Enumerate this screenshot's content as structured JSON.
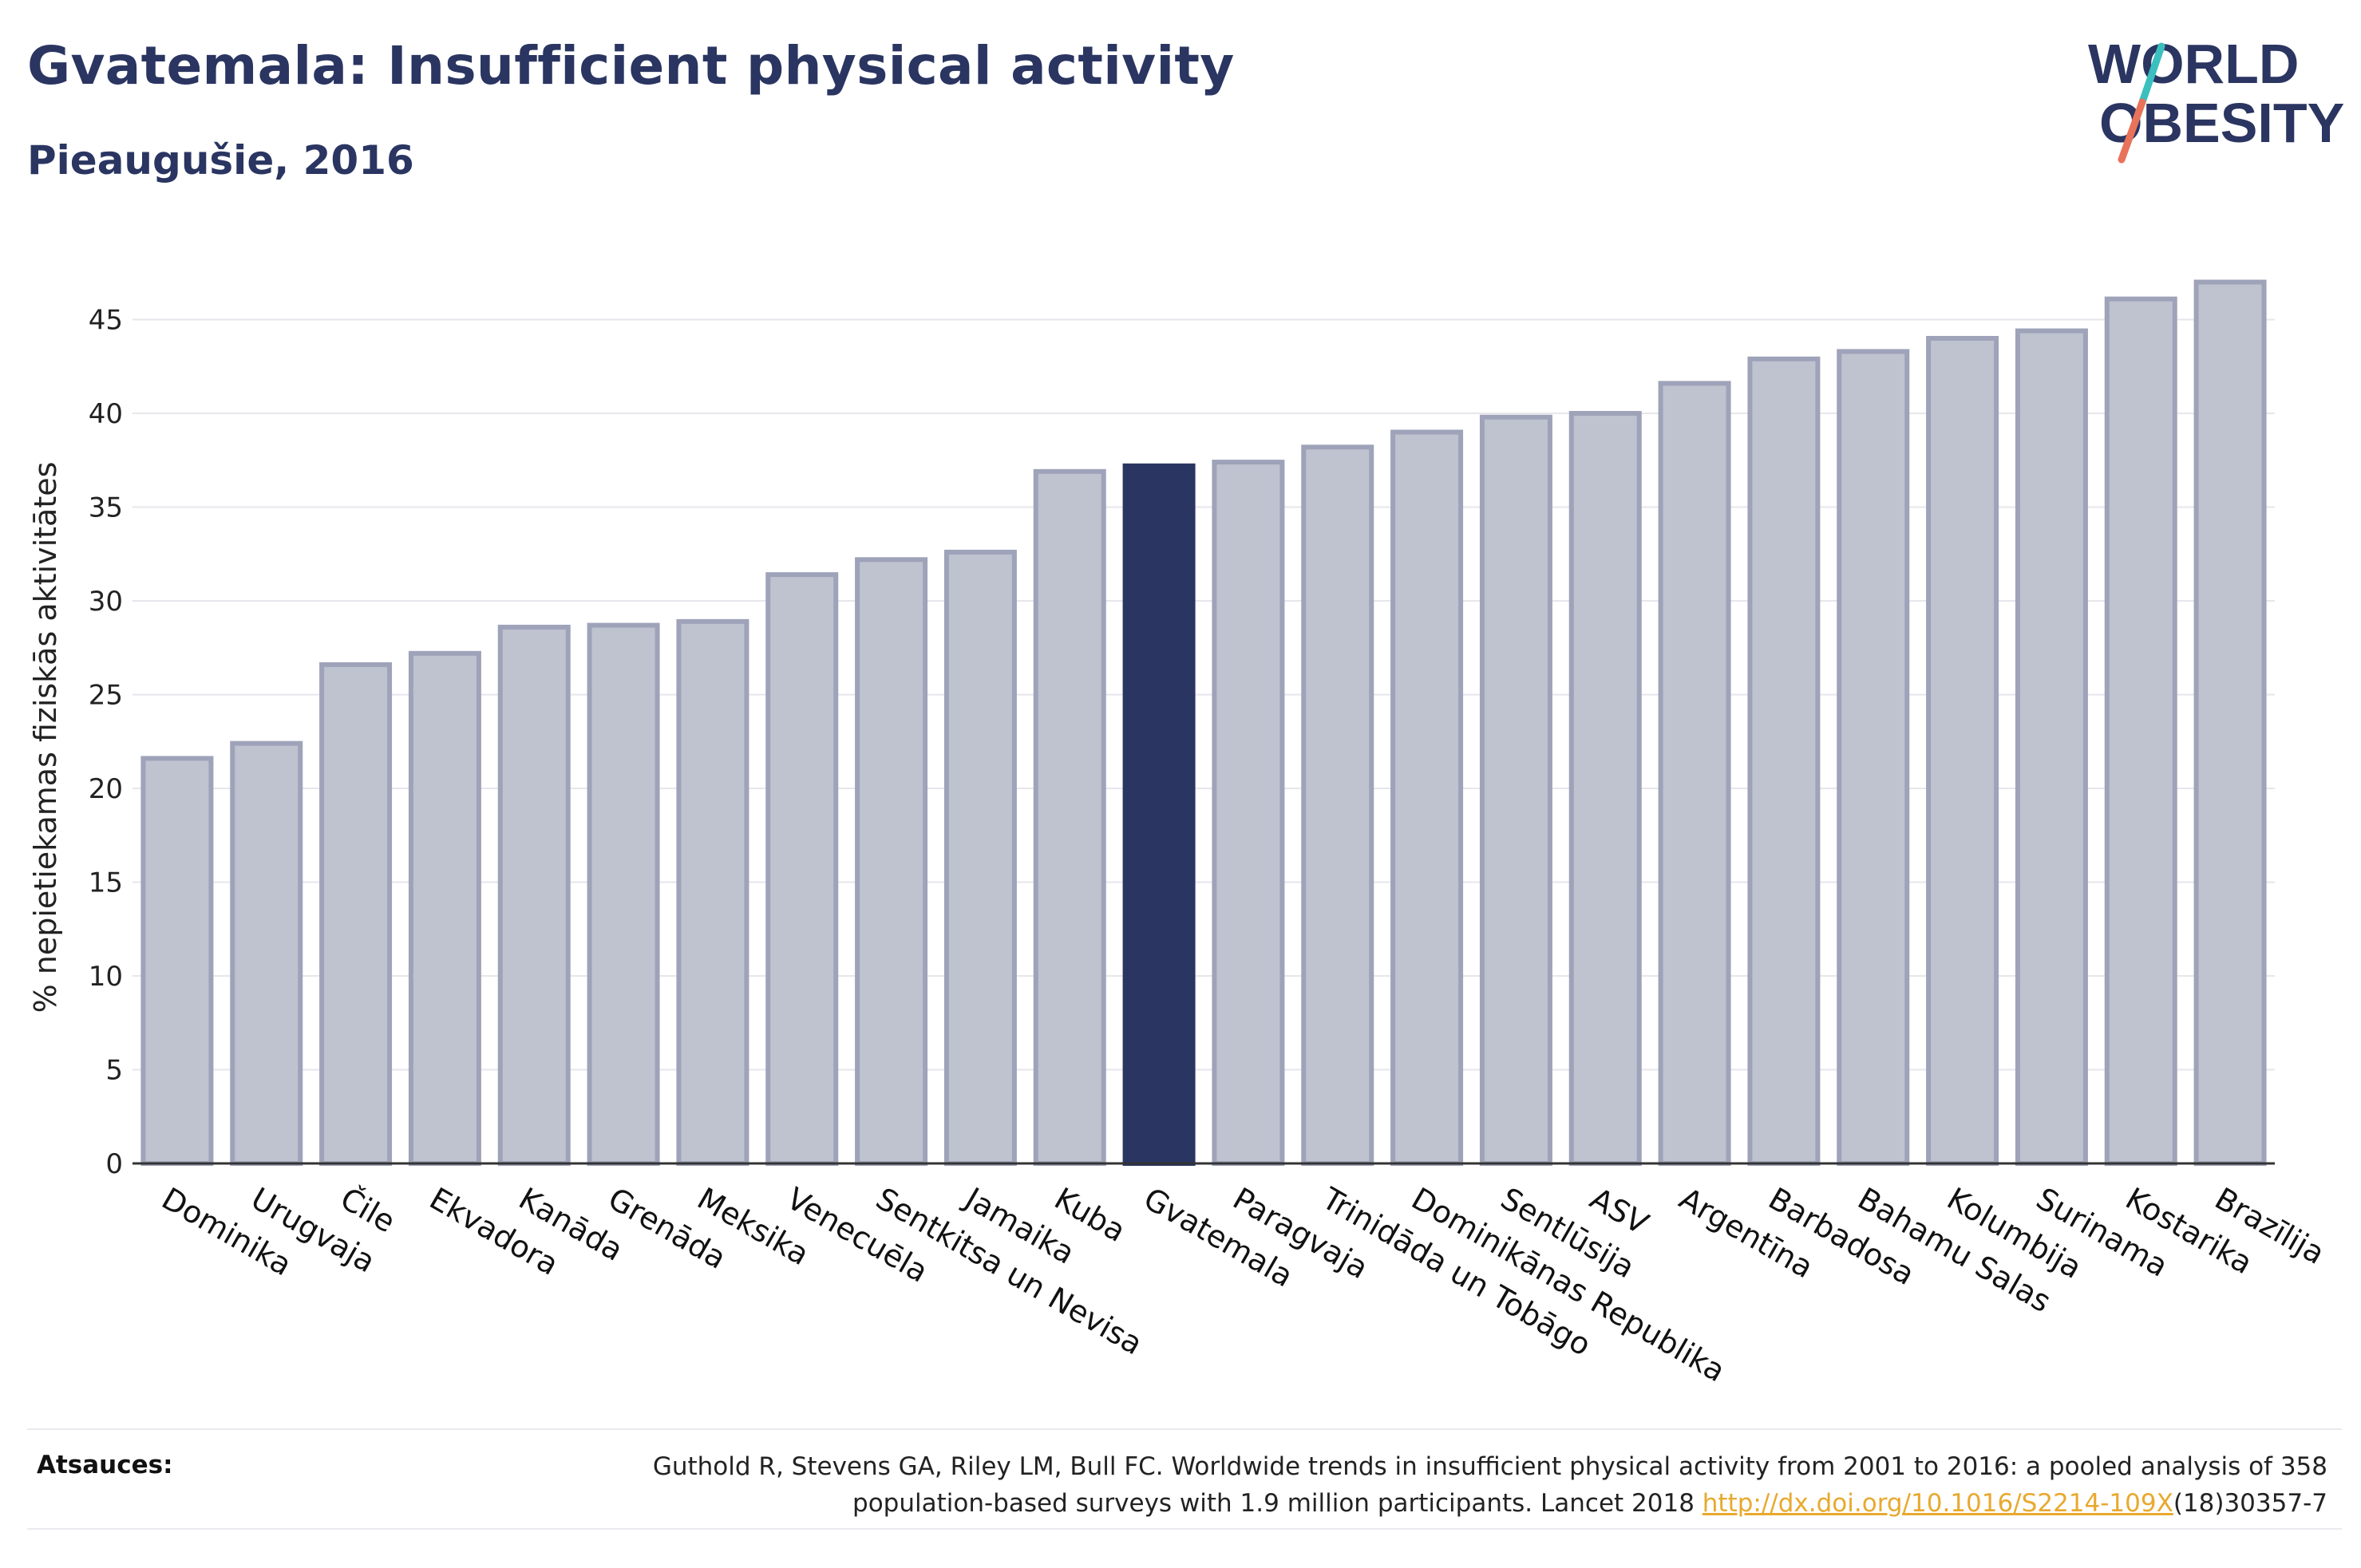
{
  "header": {
    "title": "Gvatemala: Insufficient physical activity",
    "subtitle": "Pieaugušie, 2016"
  },
  "logo": {
    "line1": "WORLD",
    "line2": "OBESITY",
    "slash_colors": [
      "#3bbfbf",
      "#e8735a"
    ]
  },
  "colors": {
    "bar_fill": "#bfc2cf",
    "bar_stroke": "#9fa3b9",
    "highlight": "#2a3561",
    "grid": "#e6e6ec",
    "axis": "#333333"
  },
  "chart_data": {
    "type": "bar",
    "title": "",
    "xlabel": "",
    "ylabel": "% nepietiekamas fiziskās aktivitātes",
    "ylim": [
      0,
      48
    ],
    "yticks": [
      0,
      5,
      10,
      15,
      20,
      25,
      30,
      35,
      40,
      45
    ],
    "grid": true,
    "highlight": "Gvatemala",
    "categories": [
      "Dominika",
      "Urugvaja",
      "Čile",
      "Ekvadora",
      "Kanāda",
      "Grenāda",
      "Meksika",
      "Venecuēla",
      "Sentkitsa un Nevisa",
      "Jamaika",
      "Kuba",
      "Gvatemala",
      "Paragvaja",
      "Trinidāda un Tobāgo",
      "Dominikānas Republika",
      "Sentlūsija",
      "ASV",
      "Argentīna",
      "Barbadosa",
      "Bahamu Salas",
      "Kolumbija",
      "Surinama",
      "Kostarika",
      "Brazīlija"
    ],
    "values": [
      21.6,
      22.4,
      26.6,
      27.2,
      28.6,
      28.7,
      28.9,
      31.4,
      32.2,
      32.6,
      36.9,
      37.2,
      37.4,
      38.2,
      39.0,
      39.8,
      40.0,
      41.6,
      42.9,
      43.3,
      44.0,
      44.4,
      46.1,
      47.0
    ]
  },
  "footer": {
    "sources_label": "Atsauces:",
    "source_line1": "Guthold R, Stevens GA, Riley LM, Bull FC. Worldwide trends in insufficient physical activity from 2001 to 2016: a pooled analysis of 358",
    "source_line2_pre": "population-based surveys with 1.9 million participants. Lancet 2018 ",
    "source_link": "http://dx.doi.org/10.1016/S2214-109X",
    "source_line2_post": "(18)30357-7"
  }
}
